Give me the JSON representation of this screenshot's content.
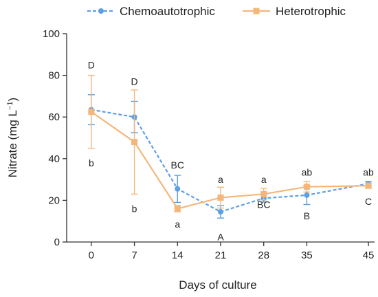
{
  "chart_data": {
    "type": "line",
    "xlabel": "Days of culture",
    "ylabel": "Nitrate (mg L",
    "ylabel_sup": "−1",
    "ylabel_end": ")",
    "xlim": [
      -4,
      46
    ],
    "ylim": [
      0,
      100
    ],
    "x_ticks": [
      0,
      7,
      14,
      21,
      28,
      35,
      45
    ],
    "x_tick_labels": [
      "0",
      "7",
      "14",
      "21",
      "28",
      "35",
      "45"
    ],
    "y_ticks": [
      0,
      20,
      40,
      60,
      80,
      100
    ],
    "y_tick_labels": [
      "0",
      "20",
      "40",
      "60",
      "80",
      "100"
    ],
    "legend_position": "top",
    "series": [
      {
        "name": "Chemoautotrophic",
        "color": "#5b9fe6",
        "line_style": "dashed",
        "marker": "circle",
        "x": [
          0,
          7,
          14,
          21,
          28,
          35,
          45
        ],
        "y": [
          63.5,
          60,
          25.5,
          14.5,
          21,
          22.5,
          28
        ],
        "err": [
          7.2,
          7.5,
          6.5,
          3,
          1.8,
          4.5,
          1
        ],
        "letters": [
          "D",
          "D",
          "BC",
          "A",
          "BC",
          "B",
          "C"
        ],
        "letter_values": [
          85,
          77,
          37,
          2.5,
          18,
          12.5,
          19.5
        ]
      },
      {
        "name": "Heterotrophic",
        "color": "#f3b77c",
        "line_style": "solid",
        "marker": "square",
        "x": [
          0,
          7,
          14,
          21,
          28,
          35,
          45
        ],
        "y": [
          62.5,
          48,
          16,
          21.3,
          23,
          26.5,
          27
        ],
        "err": [
          17.5,
          25,
          1.5,
          5,
          2.8,
          2.5,
          1.2
        ],
        "letters": [
          "b",
          "b",
          "a",
          "a",
          "a",
          "ab",
          "ab"
        ],
        "letter_values": [
          38,
          16,
          8.5,
          30,
          30,
          33.5,
          33.5
        ]
      }
    ]
  }
}
